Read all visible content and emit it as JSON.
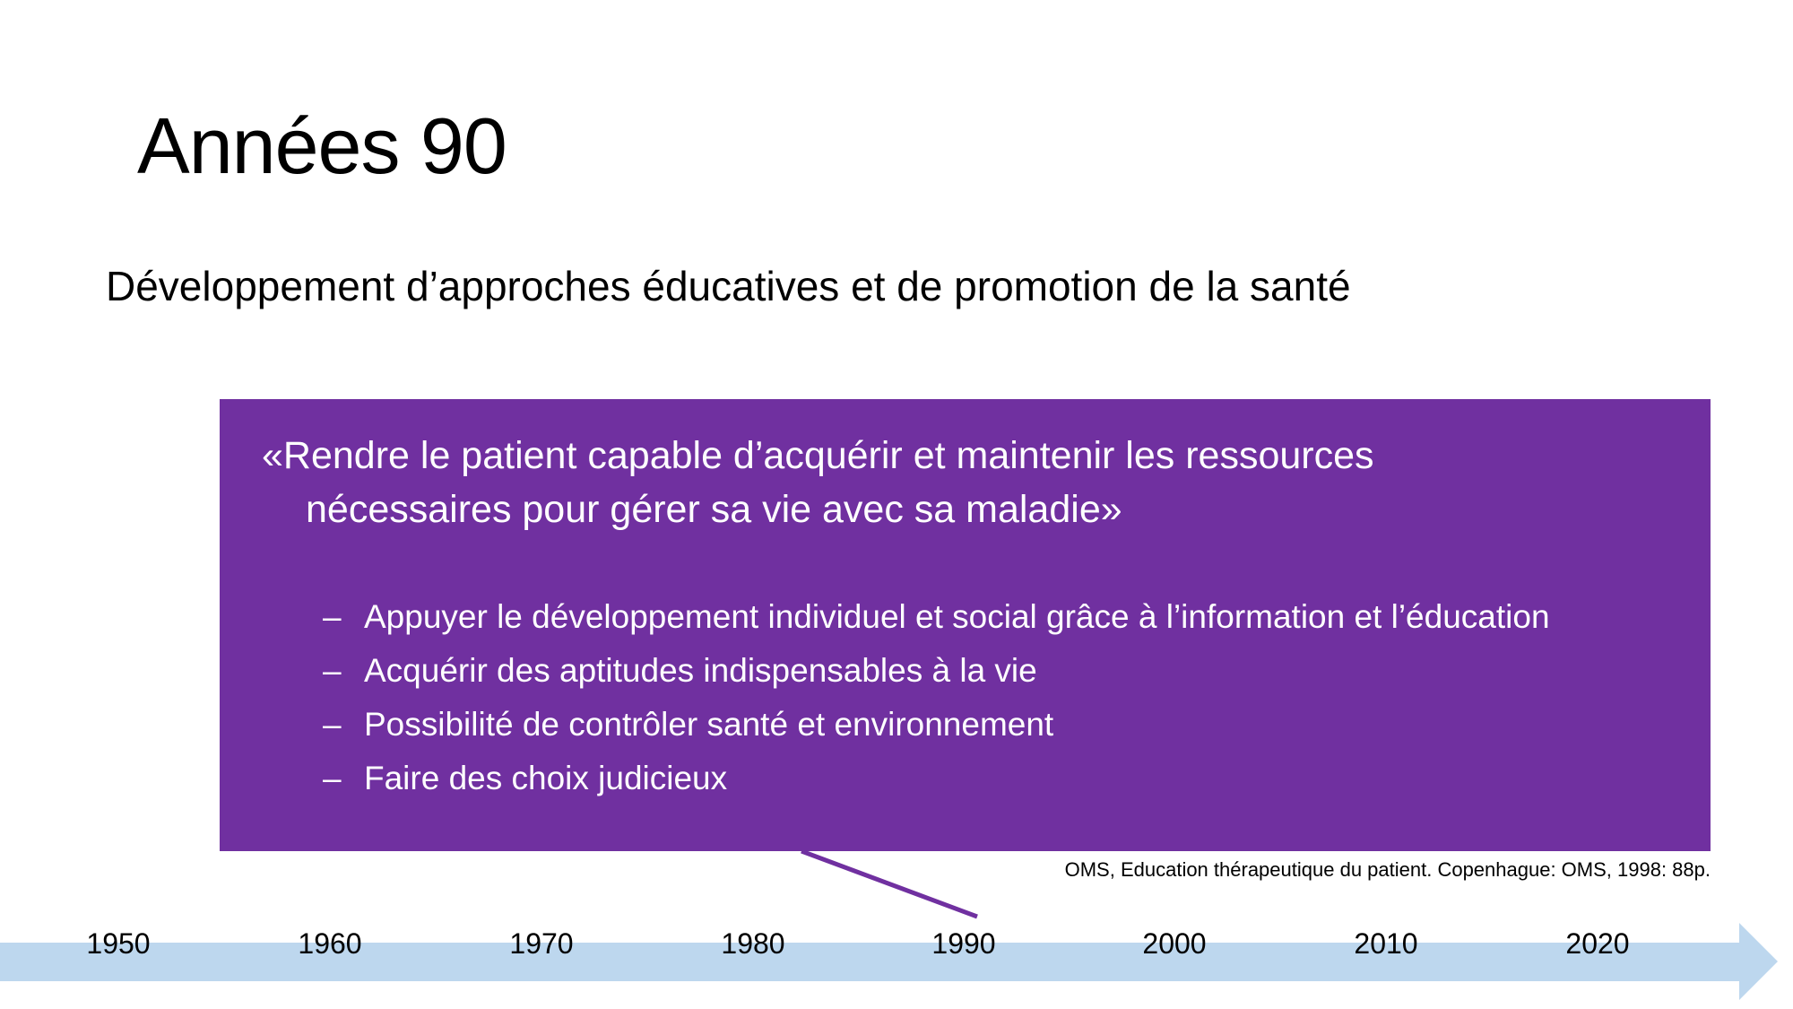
{
  "slide": {
    "title": "Années 90",
    "subtitle": "Développement d’approches éducatives et de promotion de la santé",
    "quote_line1": "«Rendre le patient capable d’acquérir et maintenir les ressources",
    "quote_line2": "nécessaires pour gérer sa vie avec sa maladie»",
    "bullet_marker": "–",
    "bullets": [
      "Appuyer le développement individuel et social grâce à l’information et l’éducation",
      "Acquérir des aptitudes indispensables à la vie",
      "Possibilité de contrôler santé et environnement",
      "Faire des choix judicieux"
    ],
    "citation": "OMS, Education thérapeutique du patient. Copenhague: OMS, 1998: 88p.",
    "timeline": [
      "1950",
      "1960",
      "1970",
      "1980",
      "1990",
      "2000",
      "2010",
      "2020"
    ],
    "highlighted_year": "1990",
    "colors": {
      "box": "#7030A0",
      "timeline": "#BDD7EE"
    }
  }
}
